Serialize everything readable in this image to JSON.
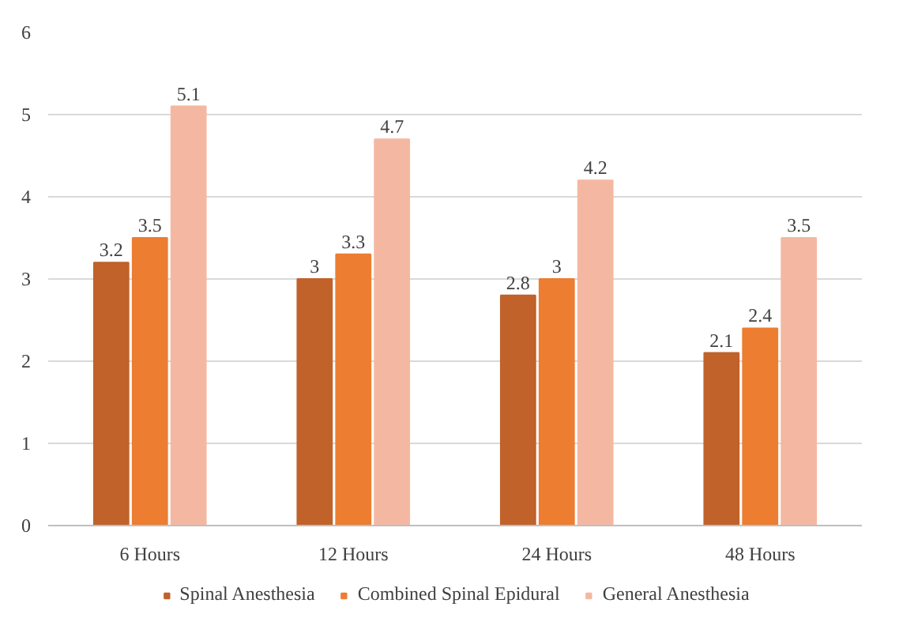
{
  "chart_data": {
    "type": "bar",
    "categories": [
      "6 Hours",
      "12 Hours",
      "24 Hours",
      "48 Hours"
    ],
    "series": [
      {
        "name": "Spinal Anesthesia",
        "color": "#c0622a",
        "values": [
          3.2,
          3,
          2.8,
          2.1
        ]
      },
      {
        "name": "Combined Spinal Epidural",
        "color": "#ed7d31",
        "values": [
          3.5,
          3.3,
          3,
          2.4
        ]
      },
      {
        "name": "General Anesthesia",
        "color": "#f4b8a2",
        "values": [
          5.1,
          4.7,
          4.2,
          3.5
        ]
      }
    ],
    "ylim": [
      0,
      6
    ],
    "yticks": [
      0,
      1,
      2,
      3,
      4,
      5,
      6
    ],
    "grid": "y",
    "legend": "bottom",
    "data_labels": true
  }
}
